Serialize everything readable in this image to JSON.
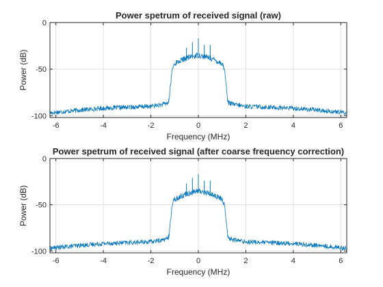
{
  "chart_data": [
    {
      "type": "line",
      "title": "Power spetrum of received signal (raw)",
      "xlabel": "Frequency (MHz)",
      "ylabel": "Power (dB)",
      "xlim": [
        -6.25,
        6.25
      ],
      "ylim": [
        -102,
        0
      ],
      "xticks": [
        -6,
        -4,
        -2,
        0,
        2,
        4,
        6
      ],
      "xticklabels": [
        "-6",
        "-4",
        "-2",
        "0",
        "2",
        "4",
        "6"
      ],
      "yticks": [
        -100,
        -50,
        0
      ],
      "yticklabels": [
        "-100",
        "-50",
        "0"
      ],
      "grid": true,
      "color": "#0072bd",
      "series": [
        {
          "x": [
            -6.25,
            -5,
            -4,
            -3,
            -2,
            -1.5,
            -1.25,
            -1.1,
            -1.0,
            -0.5,
            0,
            0.5,
            1.0,
            1.1,
            1.25,
            1.5,
            2,
            3,
            4,
            5,
            6.25
          ],
          "values": [
            -97,
            -94,
            -92,
            -91,
            -90,
            -88,
            -86,
            -50,
            -44,
            -38,
            -35,
            -38,
            -44,
            -50,
            -86,
            -88,
            -90,
            -91,
            -92,
            -94,
            -97
          ],
          "spikes": [
            {
              "x": -1.25,
              "y": -82
            },
            {
              "x": -0.5,
              "y": -27
            },
            {
              "x": -0.25,
              "y": -21
            },
            {
              "x": 0,
              "y": -17
            },
            {
              "x": 0.25,
              "y": -24
            },
            {
              "x": 0.5,
              "y": -24
            },
            {
              "x": 1.25,
              "y": -83
            }
          ]
        }
      ]
    },
    {
      "type": "line",
      "title": "Power spetrum of received signal (after coarse frequency correction)",
      "xlabel": "Frequency (MHz)",
      "ylabel": "Power (dB)",
      "xlim": [
        -6.25,
        6.25
      ],
      "ylim": [
        -102,
        0
      ],
      "xticks": [
        -6,
        -4,
        -2,
        0,
        2,
        4,
        6
      ],
      "xticklabels": [
        "-6",
        "-4",
        "-2",
        "0",
        "2",
        "4",
        "6"
      ],
      "yticks": [
        -100,
        -50,
        0
      ],
      "yticklabels": [
        "-100",
        "-50",
        "0"
      ],
      "grid": true,
      "color": "#0072bd",
      "series": [
        {
          "x": [
            -6.25,
            -5,
            -4,
            -3,
            -2,
            -1.5,
            -1.25,
            -1.1,
            -1.0,
            -0.5,
            0,
            0.5,
            1.0,
            1.1,
            1.25,
            1.5,
            2,
            3,
            4,
            5,
            6.25
          ],
          "values": [
            -97,
            -94,
            -92,
            -91,
            -90,
            -88,
            -86,
            -50,
            -44,
            -38,
            -35,
            -38,
            -44,
            -50,
            -86,
            -88,
            -90,
            -91,
            -92,
            -94,
            -97
          ],
          "spikes": [
            {
              "x": -1.25,
              "y": -82
            },
            {
              "x": -0.5,
              "y": -27
            },
            {
              "x": -0.25,
              "y": -21
            },
            {
              "x": 0,
              "y": -17
            },
            {
              "x": 0.25,
              "y": -24
            },
            {
              "x": 0.5,
              "y": -24
            },
            {
              "x": 1.25,
              "y": -83
            }
          ]
        }
      ]
    }
  ]
}
